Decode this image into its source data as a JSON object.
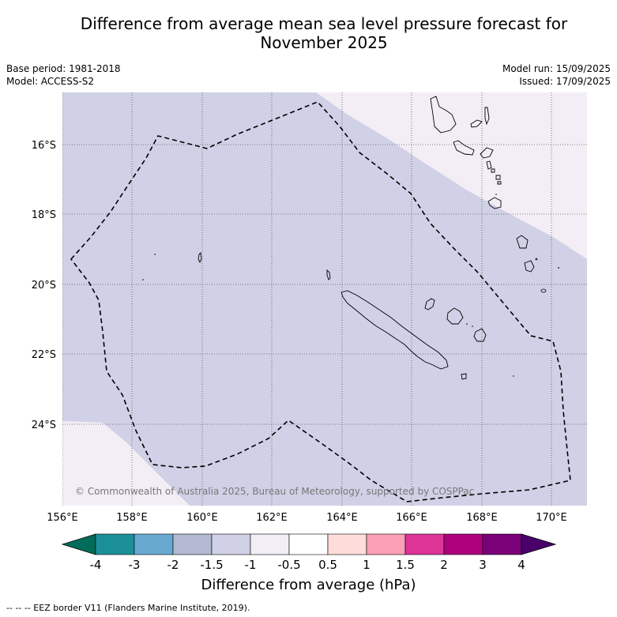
{
  "header": {
    "title_line1": "Difference from average mean sea level pressure forecast for",
    "title_line2": "November 2025",
    "base_period": "Base period: 1981-2018",
    "model": "Model: ACCESS-S2",
    "model_run": "Model run: 15/09/2025",
    "issued": "Issued: 17/09/2025"
  },
  "map": {
    "lat_labels": [
      "16°S",
      "18°S",
      "20°S",
      "22°S",
      "24°S"
    ],
    "lon_labels": [
      "156°E",
      "158°E",
      "160°E",
      "162°E",
      "164°E",
      "166°E",
      "168°E",
      "170°E"
    ],
    "copyright": "© Commonwealth of Australia 2025, Bureau of Meteorology, supported by COSPPac"
  },
  "colorbar": {
    "tick_labels": [
      "-4",
      "-3",
      "-2",
      "-1.5",
      "-1",
      "-0.5",
      "0.5",
      "1",
      "1.5",
      "2",
      "3",
      "4"
    ],
    "colors": [
      "#1c9099",
      "#67a9cf",
      "#b3b9d1",
      "#d0d1e6",
      "#f3eef6",
      "#ffffff",
      "#fddcd9",
      "#fa9fb5",
      "#dd3497",
      "#ae017e",
      "#7a0177"
    ],
    "low_extend_color": "#016c59",
    "high_extend_color": "#49006a",
    "label": "Difference from average (hPa)"
  },
  "footer": {
    "eez_legend": "-- -- -- EEZ border V11 (Flanders Marine Institute, 2019)."
  }
}
